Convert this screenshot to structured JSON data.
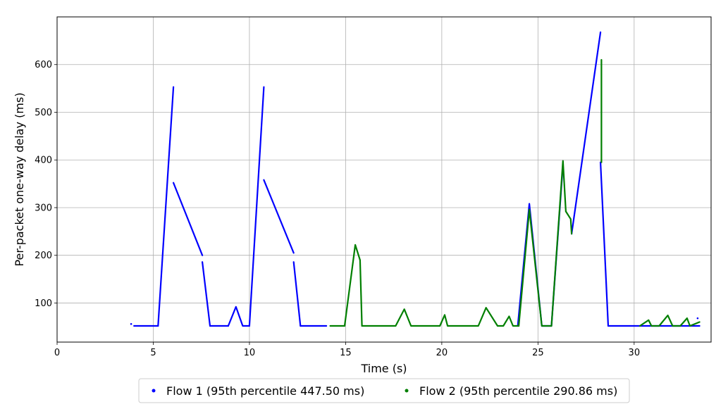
{
  "chart_data": {
    "type": "scatter",
    "title": "",
    "xlabel": "Time (s)",
    "ylabel": "Per-packet one-way delay (ms)",
    "xlim": [
      0,
      34
    ],
    "ylim": [
      18,
      700
    ],
    "xticks": [
      0,
      5,
      10,
      15,
      20,
      25,
      30
    ],
    "yticks": [
      100,
      200,
      300,
      400,
      500,
      600
    ],
    "grid": true,
    "legend_position": "bottom-center",
    "series": [
      {
        "name": "Flow 1 (95th percentile 447.50 ms)",
        "color": "#0000ff",
        "segments": [
          [
            [
              3.85,
              56
            ]
          ],
          [
            [
              4.0,
              52
            ],
            [
              5.25,
              52
            ]
          ],
          [
            [
              5.25,
              52
            ],
            [
              6.05,
              553
            ]
          ],
          [
            [
              6.05,
              352
            ],
            [
              7.55,
              200
            ]
          ],
          [
            [
              7.55,
              186
            ],
            [
              7.95,
              52
            ]
          ],
          [
            [
              7.95,
              52
            ],
            [
              8.9,
              52
            ]
          ],
          [
            [
              8.9,
              52
            ],
            [
              9.3,
              92
            ],
            [
              9.65,
              52
            ],
            [
              10.0,
              52
            ]
          ],
          [
            [
              10.0,
              52
            ],
            [
              10.75,
              553
            ]
          ],
          [
            [
              10.75,
              358
            ],
            [
              12.3,
              205
            ]
          ],
          [
            [
              12.3,
              186
            ],
            [
              12.65,
              52
            ]
          ],
          [
            [
              12.65,
              52
            ],
            [
              14.0,
              52
            ]
          ],
          [
            [
              23.95,
              52
            ],
            [
              24.55,
              308
            ],
            [
              25.2,
              52
            ],
            [
              25.7,
              52
            ]
          ],
          [
            [
              25.7,
              52
            ],
            [
              26.3,
              390
            ]
          ],
          [
            [
              26.75,
              245
            ],
            [
              28.25,
              668
            ]
          ],
          [
            [
              28.25,
              395
            ],
            [
              28.65,
              52
            ]
          ],
          [
            [
              28.65,
              52
            ],
            [
              33.4,
              52
            ]
          ],
          [
            [
              33.3,
              68
            ]
          ]
        ]
      },
      {
        "name": "Flow 2 (95th percentile 290.86 ms)",
        "color": "#007f00",
        "segments": [
          [
            [
              14.2,
              52
            ],
            [
              14.95,
              52
            ]
          ],
          [
            [
              14.95,
              52
            ],
            [
              15.5,
              222
            ],
            [
              15.75,
              190
            ],
            [
              15.85,
              52
            ]
          ],
          [
            [
              15.85,
              52
            ],
            [
              17.6,
              52
            ],
            [
              18.05,
              87
            ],
            [
              18.4,
              52
            ],
            [
              19.9,
              52
            ],
            [
              20.15,
              75
            ],
            [
              20.3,
              52
            ],
            [
              21.9,
              52
            ],
            [
              22.3,
              90
            ],
            [
              22.9,
              52
            ],
            [
              23.2,
              52
            ],
            [
              23.5,
              72
            ],
            [
              23.7,
              52
            ],
            [
              24.0,
              52
            ]
          ],
          [
            [
              24.0,
              52
            ],
            [
              24.55,
              296
            ],
            [
              25.2,
              52
            ],
            [
              25.7,
              52
            ]
          ],
          [
            [
              25.7,
              52
            ],
            [
              26.3,
              398
            ],
            [
              26.45,
              292
            ],
            [
              26.7,
              276
            ],
            [
              26.75,
              245
            ]
          ],
          [
            [
              28.3,
              610
            ],
            [
              28.3,
              395
            ]
          ],
          [
            [
              30.3,
              52
            ],
            [
              30.75,
              64
            ],
            [
              30.9,
              52
            ],
            [
              31.3,
              52
            ],
            [
              31.75,
              74
            ],
            [
              32.0,
              52
            ],
            [
              32.4,
              52
            ],
            [
              32.75,
              68
            ],
            [
              32.9,
              52
            ],
            [
              33.4,
              60
            ]
          ]
        ]
      }
    ]
  }
}
